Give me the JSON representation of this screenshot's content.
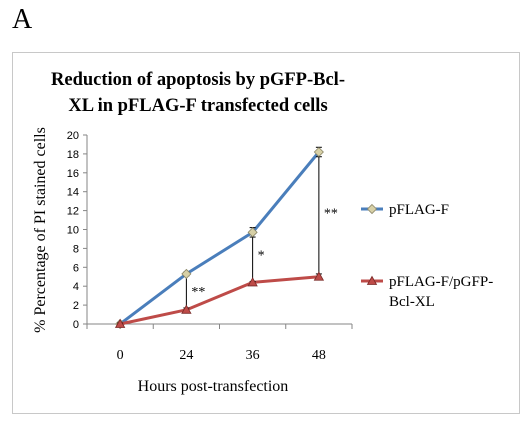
{
  "panel_letter": "A",
  "chart_data": {
    "type": "line",
    "title_lines": [
      "Reduction of apoptosis by pGFP-Bcl-",
      "XL in pFLAG-F transfected cells"
    ],
    "xlabel": "Hours post-transfection",
    "ylabel": "% Percentage of PI stained cells",
    "categories": [
      "0",
      "24",
      "36",
      "48"
    ],
    "ylim": [
      0,
      20
    ],
    "yticks": [
      0,
      2,
      4,
      6,
      8,
      10,
      12,
      14,
      16,
      18,
      20
    ],
    "grid": false,
    "legend_position": "right",
    "series": [
      {
        "name": "pFLAG-F",
        "values": [
          0,
          5.3,
          9.7,
          18.2
        ],
        "errors": [
          0.1,
          0.2,
          0.5,
          0.5
        ],
        "color": "#4a7ebb",
        "marker": "diamond",
        "legend_lines": [
          "pFLAG-F"
        ]
      },
      {
        "name": "pFLAG-F/pGFP-Bcl-XL",
        "values": [
          0,
          1.5,
          4.4,
          5.0
        ],
        "errors": [
          0.1,
          0.2,
          0.1,
          0.3
        ],
        "color": "#be4b48",
        "marker": "triangle",
        "legend_lines": [
          "pFLAG-F/pGFP-",
          "Bcl-XL"
        ]
      }
    ],
    "significance": [
      {
        "category": "24",
        "label": "**"
      },
      {
        "category": "36",
        "label": "*"
      },
      {
        "category": "48",
        "label": "**"
      }
    ]
  }
}
